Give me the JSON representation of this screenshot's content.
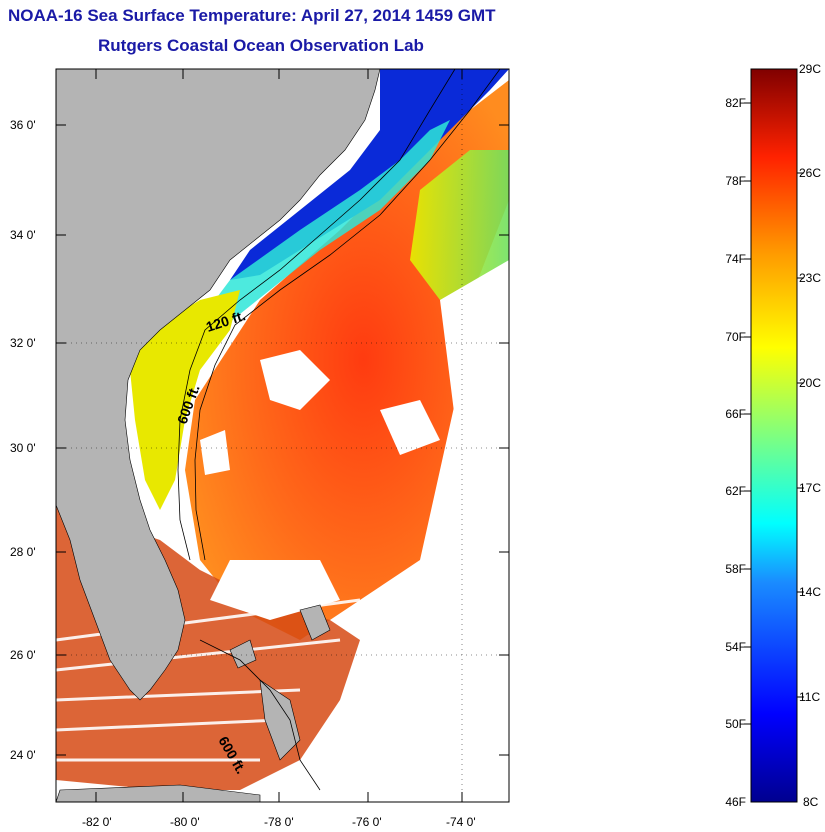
{
  "title_line1": "NOAA-16 Sea Surface Temperature:  April 27, 2014 1459 GMT",
  "title_line2": "Rutgers Coastal Ocean Observation Lab",
  "colors": {
    "land": "#b4b4b4",
    "title_text": "#1a1aa6",
    "frame": "#000000"
  },
  "map": {
    "lat_labels": [
      "36 0'",
      "34 0'",
      "32 0'",
      "30 0'",
      "28 0'",
      "26 0'",
      "24 0'"
    ],
    "lon_labels": [
      "-82 0'",
      "-80 0'",
      "-78 0'",
      "-76 0'",
      "-74 0'"
    ],
    "contour_labels": [
      "120 ft.",
      "600 ft.",
      "600 ft."
    ]
  },
  "colorbar": {
    "fahrenheit_labels": [
      "82F",
      "78F",
      "74F",
      "70F",
      "66F",
      "62F",
      "58F",
      "54F",
      "50F",
      "46F"
    ],
    "celsius_labels": [
      "29C",
      "26C",
      "23C",
      "20C",
      "17C",
      "14C",
      "11C",
      "8C"
    ],
    "range_c": [
      8,
      29
    ],
    "range_f": [
      46,
      84
    ]
  }
}
